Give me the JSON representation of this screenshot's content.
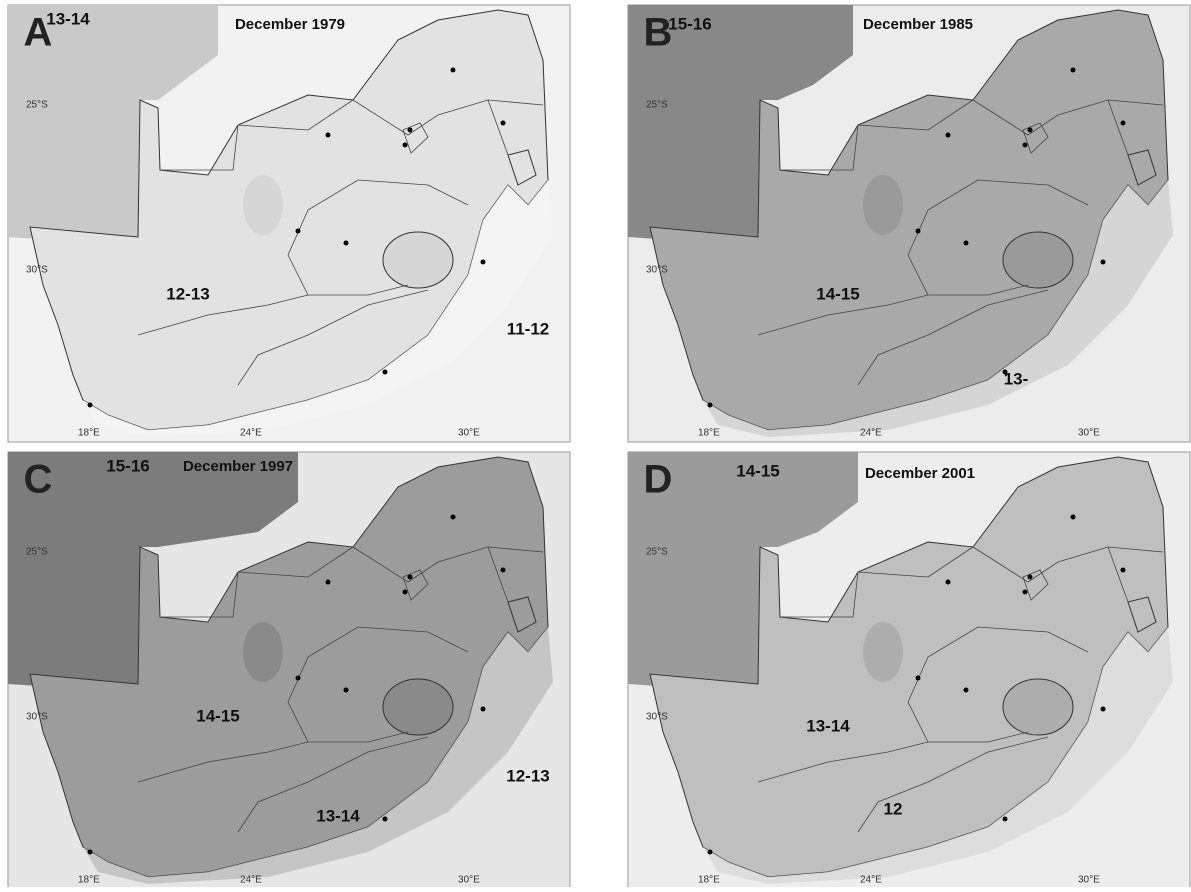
{
  "axis_labels": {
    "lat": [
      "25°S",
      "30°S"
    ],
    "lon": [
      "18°E",
      "24°E",
      "30°E"
    ]
  },
  "panels": [
    {
      "letter": "A",
      "title": "December 1979",
      "zones": [
        "13-14",
        "12-13",
        "11-12"
      ]
    },
    {
      "letter": "B",
      "title": "December 1985",
      "zones": [
        "15-16",
        "14-15",
        "13-"
      ]
    },
    {
      "letter": "C",
      "title": "December 1997",
      "zones": [
        "15-16",
        "14-15",
        "13-14",
        "12-13"
      ]
    },
    {
      "letter": "D",
      "title": "December 2001",
      "zones": [
        "14-15",
        "13-14",
        "12"
      ]
    }
  ]
}
